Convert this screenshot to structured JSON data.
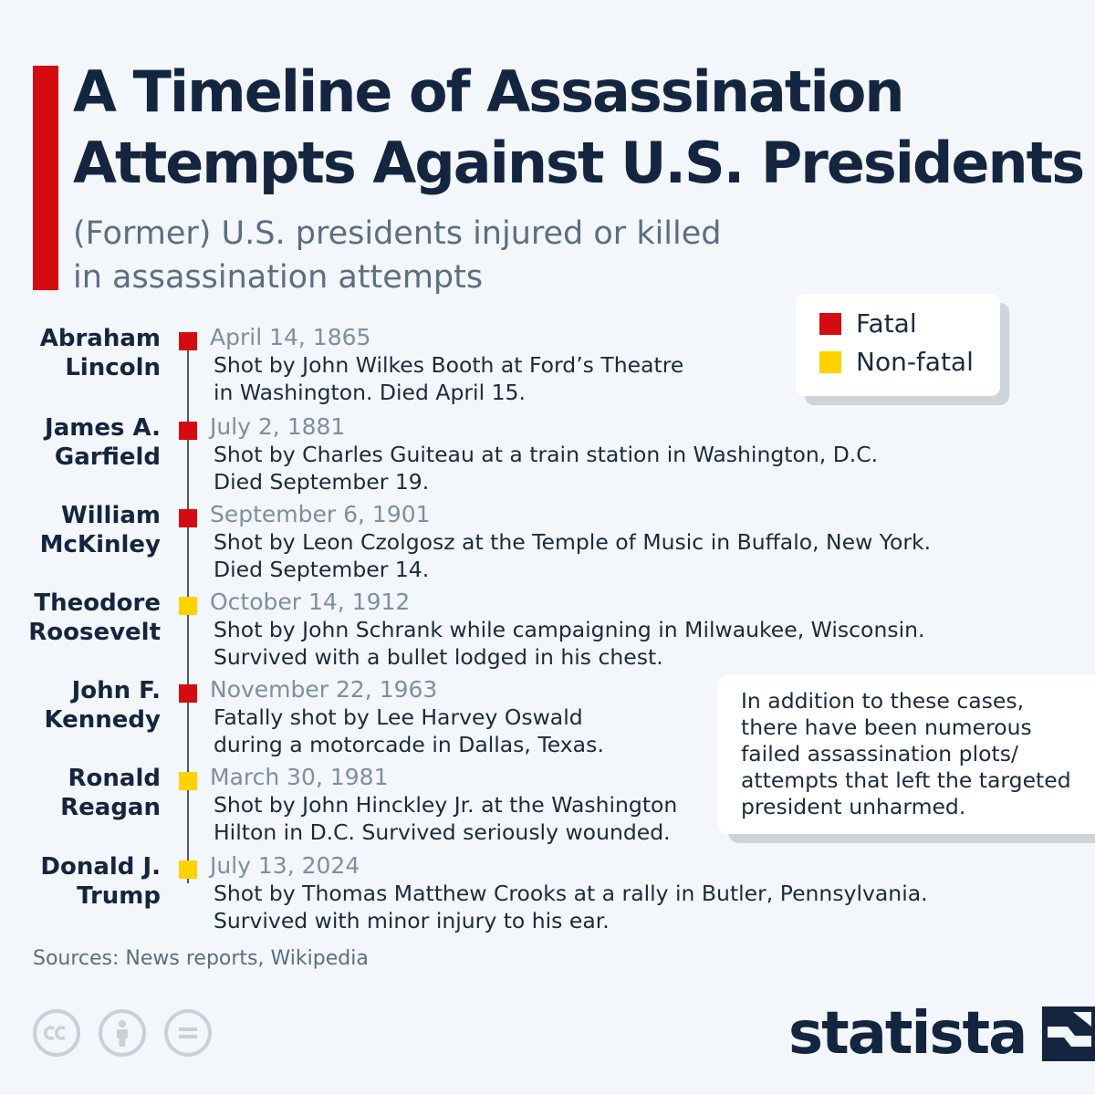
{
  "header": {
    "title_line1": "A Timeline of Assassination",
    "title_line2": "Attempts Against U.S. Presidents",
    "subtitle_line1": "(Former) U.S. presidents injured or killed",
    "subtitle_line2": "in assassination attempts"
  },
  "legend": {
    "fatal_label": "Fatal",
    "nonfatal_label": "Non-fatal",
    "fatal_color": "#d40b10",
    "nonfatal_color": "#ffd200"
  },
  "entries": [
    {
      "name_line1": "Abraham",
      "name_line2": "Lincoln",
      "date": "April 14, 1865",
      "desc_line1": "Shot by John Wilkes Booth at Ford’s Theatre",
      "desc_line2": "in Washington. Died April 15.",
      "outcome": "fatal"
    },
    {
      "name_line1": "James A.",
      "name_line2": "Garfield",
      "date": "July 2, 1881",
      "desc_line1": "Shot by Charles Guiteau at a train station in Washington, D.C.",
      "desc_line2": "Died September 19.",
      "outcome": "fatal"
    },
    {
      "name_line1": "William",
      "name_line2": "McKinley",
      "date": "September 6, 1901",
      "desc_line1": "Shot by Leon Czolgosz at the Temple of Music in Buffalo, New York.",
      "desc_line2": "Died September 14.",
      "outcome": "fatal"
    },
    {
      "name_line1": "Theodore",
      "name_line2": "Roosevelt",
      "date": "October 14, 1912",
      "desc_line1": "Shot by John Schrank while campaigning in Milwaukee, Wisconsin.",
      "desc_line2": "Survived with a bullet lodged in his chest.",
      "outcome": "non-fatal"
    },
    {
      "name_line1": "John F.",
      "name_line2": "Kennedy",
      "date": "November 22, 1963",
      "desc_line1": "Fatally shot by Lee Harvey Oswald",
      "desc_line2": "during a motorcade in Dallas, Texas.",
      "outcome": "fatal"
    },
    {
      "name_line1": "Ronald",
      "name_line2": "Reagan",
      "date": "March 30, 1981",
      "desc_line1": "Shot by John Hinckley Jr. at the Washington",
      "desc_line2": "Hilton in D.C. Survived seriously wounded.",
      "outcome": "non-fatal"
    },
    {
      "name_line1": "Donald J.",
      "name_line2": "Trump",
      "date": "July 13, 2024",
      "desc_line1": "Shot by Thomas Matthew Crooks at a rally in Butler, Pennsylvania.",
      "desc_line2": "Survived with minor injury to his ear.",
      "outcome": "non-fatal"
    }
  ],
  "note": {
    "lines": [
      "In addition to these cases,",
      "there have been numerous",
      "failed assassination plots/",
      "attempts that left the targeted",
      "president unharmed."
    ]
  },
  "footer": {
    "sources": "Sources: News reports, Wikipedia",
    "license_icons": [
      "cc-icon",
      "attribution-icon",
      "no-derivatives-icon"
    ],
    "logo_text": "statista"
  }
}
